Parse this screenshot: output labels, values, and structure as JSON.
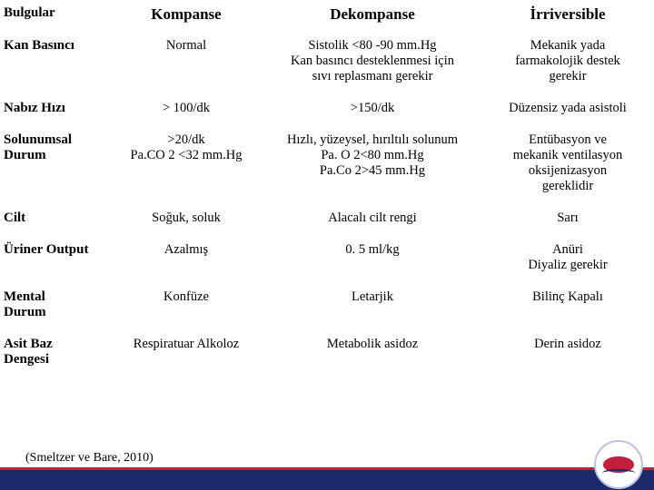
{
  "columns": [
    "Bulgular",
    "Kompanse",
    "Dekompanse",
    "İrriversible"
  ],
  "rows": [
    {
      "label": "Kan Basıncı",
      "c1": [
        "Normal"
      ],
      "c2": [
        "Sistolik <80 -90 mm.Hg",
        "Kan basıncı desteklenmesi için",
        "sıvı replasmanı gerekir"
      ],
      "c3": [
        "Mekanik yada",
        "farmakolojik destek",
        "gerekir"
      ]
    },
    {
      "label": "Nabız Hızı",
      "c1": [
        "> 100/dk"
      ],
      "c2": [
        ">150/dk"
      ],
      "c3": [
        "Düzensiz yada asistoli"
      ]
    },
    {
      "label": "Solunumsal\nDurum",
      "c1": [
        ">20/dk",
        "Pa.CO 2 <32 mm.Hg"
      ],
      "c2": [
        "Hızlı, yüzeysel, hırıltılı solunum",
        "Pa. O 2<80 mm.Hg",
        "Pa.Co 2>45 mm.Hg"
      ],
      "c3": [
        "Entübasyon ve",
        "mekanik ventilasyon",
        "oksijenizasyon",
        "gereklidir"
      ]
    },
    {
      "label": "Cilt",
      "c1": [
        "Soğuk, soluk"
      ],
      "c2": [
        "Alacalı cilt rengi"
      ],
      "c3": [
        "Sarı"
      ]
    },
    {
      "label": "Üriner Output",
      "c1": [
        "Azalmış"
      ],
      "c2": [
        "0. 5 ml/kg"
      ],
      "c3": [
        "Anüri",
        "Diyaliz gerekir"
      ]
    },
    {
      "label": "Mental\nDurum",
      "c1": [
        "Konfüze"
      ],
      "c2": [
        "Letarjik"
      ],
      "c3": [
        "Bilinç Kapalı"
      ]
    },
    {
      "label": "Asit Baz\nDengesi",
      "c1": [
        "Respiratuar Alkoloz"
      ],
      "c2": [
        "Metabolik asidoz"
      ],
      "c3": [
        "Derin asidoz"
      ]
    }
  ],
  "citation": "(Smeltzer ve Bare, 2010)"
}
